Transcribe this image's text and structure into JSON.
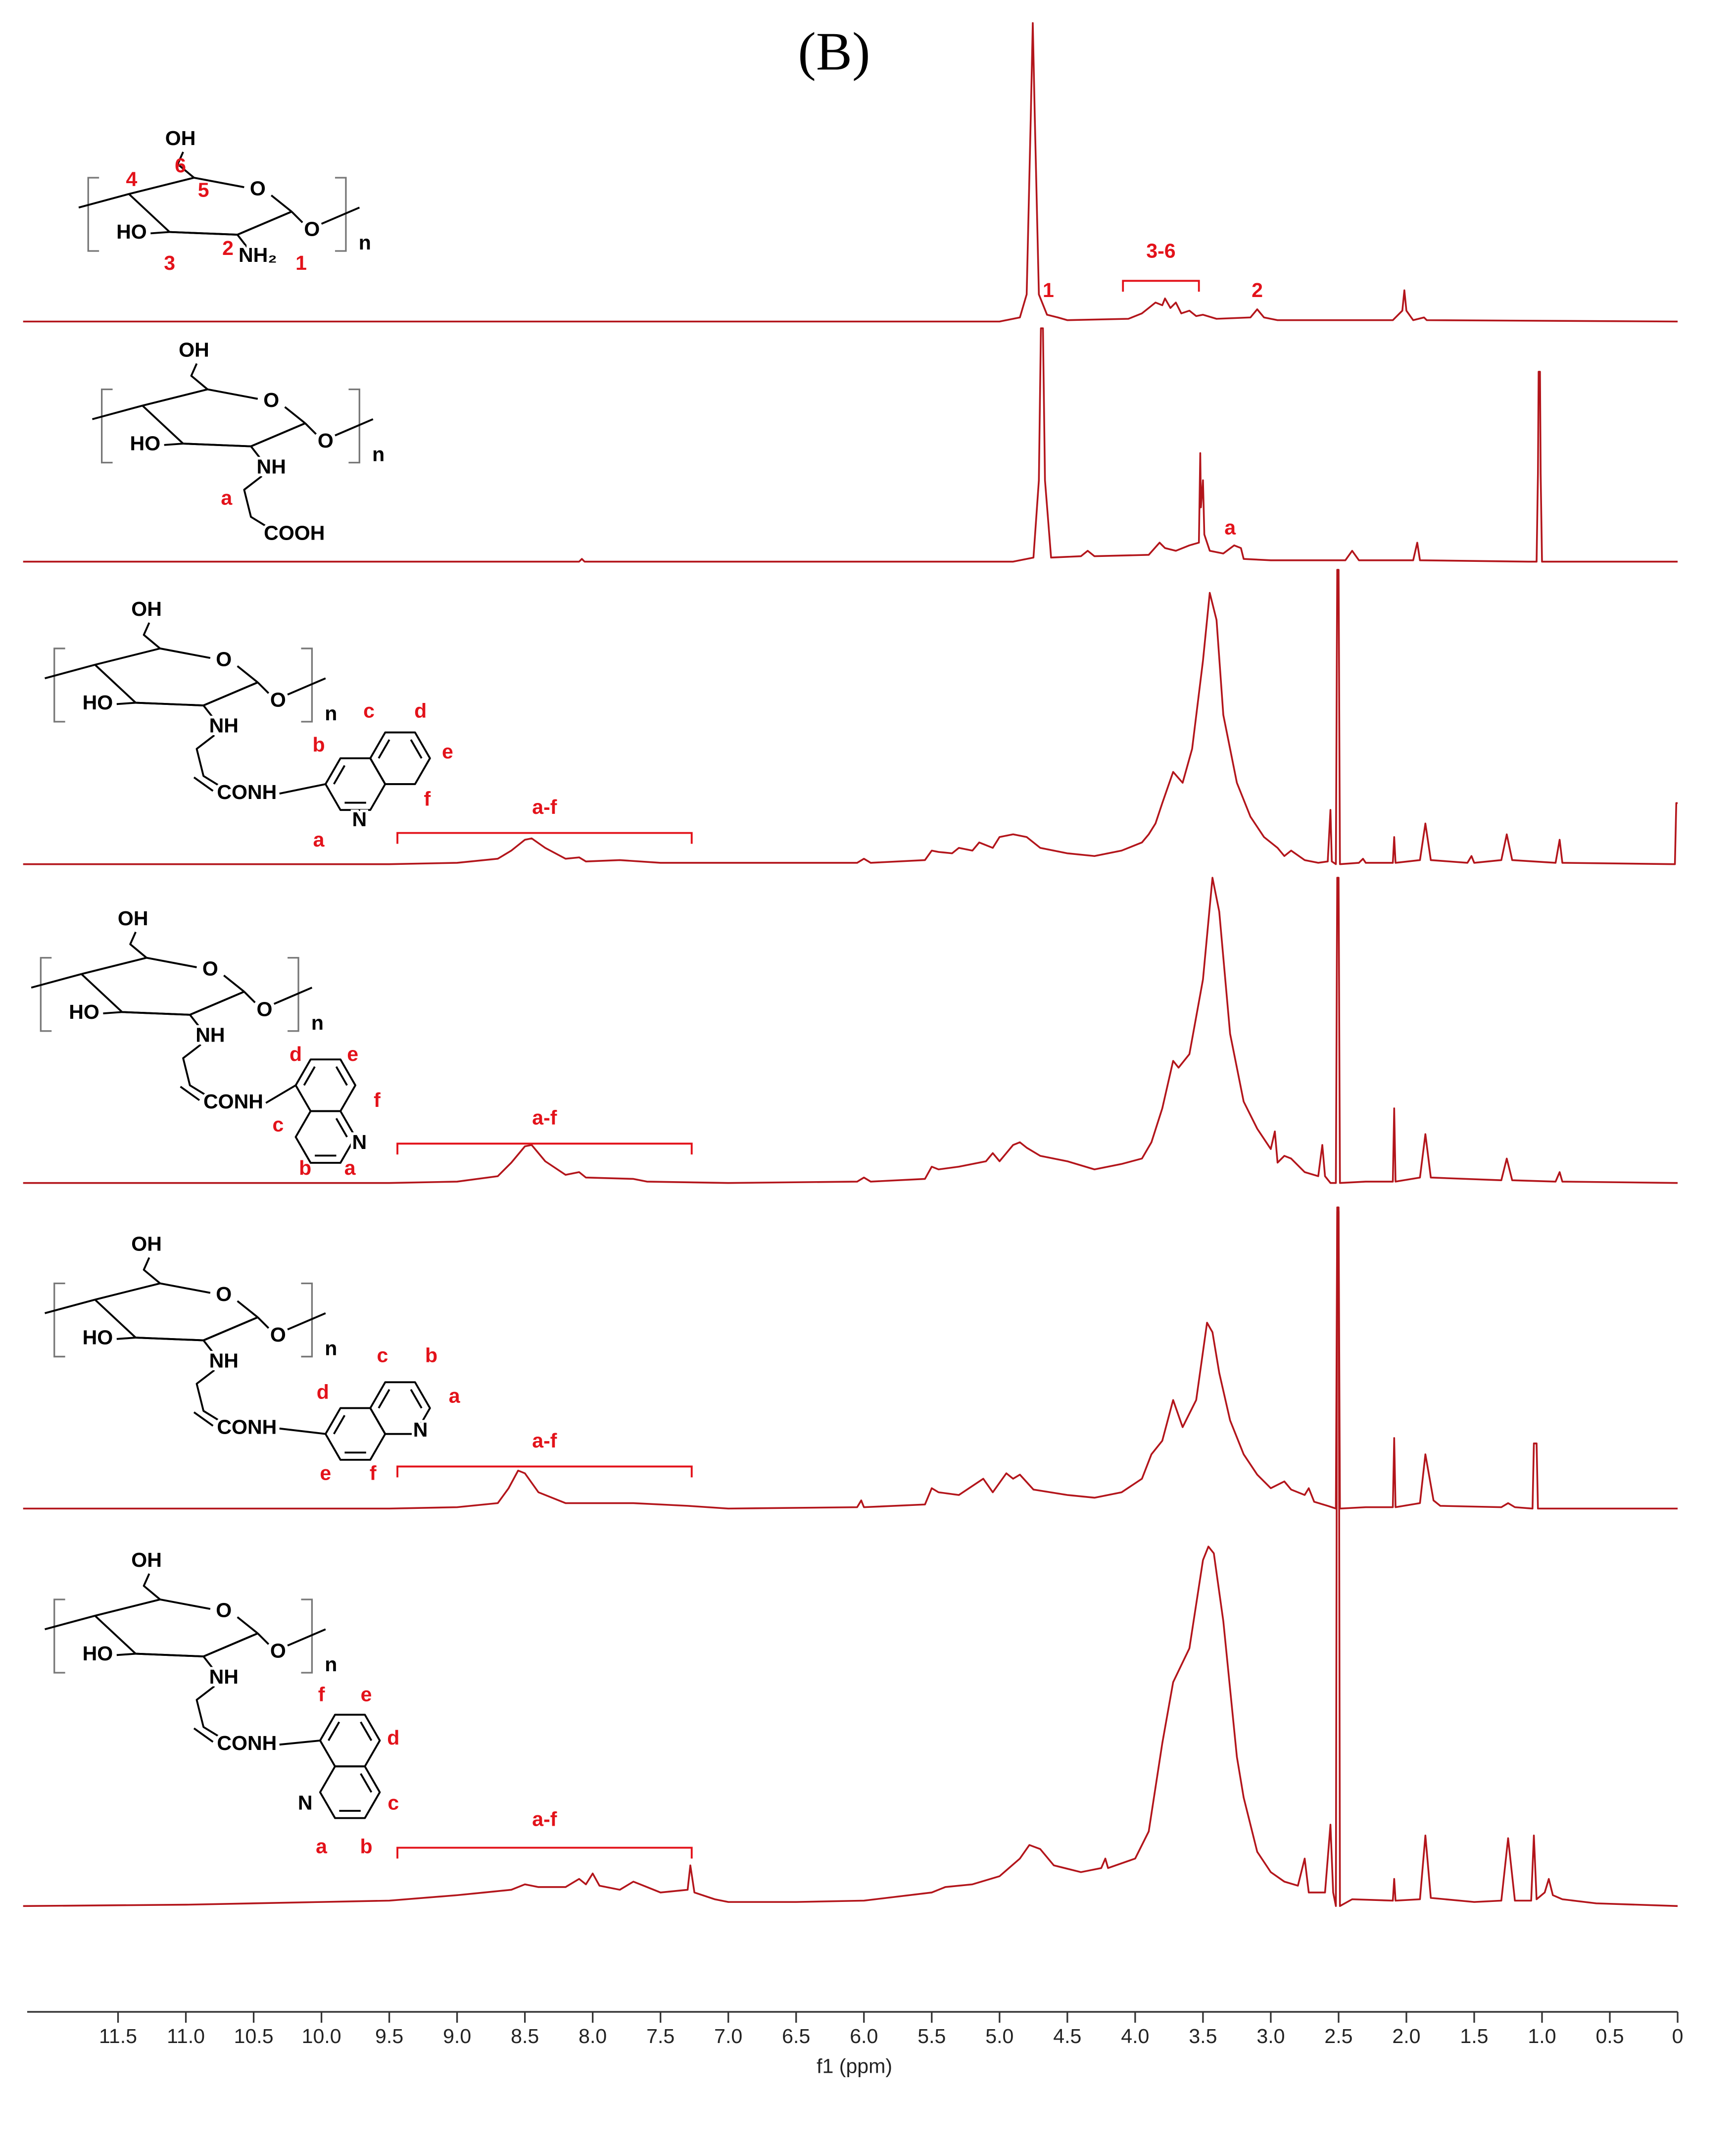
{
  "chart_data": {
    "type": "line",
    "title": "(B)",
    "x_label": "f1 (ppm)",
    "xlim": [
      12.17,
      0
    ],
    "xticks": [
      11.5,
      {
        "value": 11,
        "label": "11.0"
      },
      10.5,
      {
        "value": 10,
        "label": "10.0"
      },
      9.5,
      {
        "value": 9,
        "label": "9.0"
      },
      8.5,
      {
        "value": 8,
        "label": "8.0"
      },
      7.5,
      {
        "value": 7,
        "label": "7.0"
      },
      6.5,
      {
        "value": 6,
        "label": "6.0"
      },
      5.5,
      {
        "value": 5,
        "label": "5.0"
      },
      4.5,
      {
        "value": 4,
        "label": "4.0"
      },
      3.5,
      {
        "value": 3,
        "label": "3.0"
      },
      2.5,
      {
        "value": 2,
        "label": "2.0"
      },
      1.5,
      {
        "value": 1,
        "label": "1.0"
      },
      0.5,
      0
    ],
    "series": [
      {
        "color": "#b3151b",
        "x": [
          12.2,
          5.0,
          4.85,
          4.8,
          4.77,
          4.755,
          4.74,
          4.71,
          4.65,
          4.57,
          4.5,
          4.05,
          3.95,
          3.9,
          3.85,
          3.8,
          3.78,
          3.74,
          3.7,
          3.66,
          3.6,
          3.55,
          3.5,
          3.4,
          3.15,
          3.1,
          3.05,
          2.95,
          2.1,
          2.03,
          2.015,
          2.0,
          1.95,
          1.87,
          1.85,
          0
        ],
        "values": [
          0,
          0,
          3,
          20,
          150,
          220,
          150,
          20,
          5,
          3,
          1,
          2,
          6,
          10,
          14,
          12,
          17,
          10,
          14,
          6,
          8,
          4,
          5,
          2,
          3,
          9,
          3,
          1,
          1,
          8,
          23,
          8,
          1,
          3,
          1,
          0
        ],
        "annotations": [
          {
            "text": "1",
            "x": 4.64
          },
          {
            "text": "3-6",
            "range": [
              4.09,
              3.53
            ]
          },
          {
            "text": "2",
            "x": 3.1
          }
        ]
      },
      {
        "color": "#b3151b",
        "x": [
          12.2,
          8.1,
          8.08,
          8.06,
          4.9,
          4.75,
          4.71,
          4.695,
          4.68,
          4.665,
          4.62,
          4.4,
          4.35,
          4.3,
          3.9,
          3.82,
          3.78,
          3.7,
          3.6,
          3.53,
          3.52,
          3.515,
          3.5,
          3.49,
          3.45,
          3.35,
          3.27,
          3.22,
          3.2,
          3.0,
          2.45,
          2.4,
          2.35,
          1.95,
          1.92,
          1.9,
          1.1,
          1.04,
          1.03,
          1.025,
          1.015,
          1.01,
          1.0,
          0
        ],
        "values": [
          0,
          0,
          2,
          0,
          0,
          3,
          60,
          172,
          172,
          60,
          3,
          4,
          8,
          4,
          5,
          14,
          10,
          8,
          12,
          14,
          80,
          40,
          60,
          20,
          8,
          6,
          12,
          10,
          2,
          1,
          1,
          8,
          1,
          1,
          14,
          1,
          0,
          0,
          65,
          140,
          140,
          65,
          0,
          0
        ],
        "annotations": [
          {
            "text": "a",
            "x": 3.3
          }
        ]
      },
      {
        "color": "#b3151b",
        "x": [
          12.2,
          9.5,
          9.0,
          8.7,
          8.6,
          8.5,
          8.45,
          8.35,
          8.2,
          8.1,
          8.05,
          7.8,
          7.5,
          7.0,
          6.05,
          6.0,
          5.95,
          5.55,
          5.5,
          5.45,
          5.35,
          5.3,
          5.2,
          5.15,
          5.05,
          5.0,
          4.9,
          4.8,
          4.7,
          4.5,
          4.3,
          4.1,
          3.95,
          3.9,
          3.85,
          3.8,
          3.72,
          3.65,
          3.58,
          3.5,
          3.45,
          3.4,
          3.35,
          3.25,
          3.15,
          3.05,
          2.95,
          2.9,
          2.85,
          2.75,
          2.65,
          2.58,
          2.56,
          2.55,
          2.52,
          2.51,
          2.5,
          2.49,
          2.35,
          2.32,
          2.3,
          2.1,
          2.09,
          2.08,
          1.9,
          1.86,
          1.82,
          1.55,
          1.52,
          1.5,
          1.3,
          1.26,
          1.22,
          0.9,
          0.87,
          0.85,
          0.02,
          0.01,
          0
        ],
        "values": [
          0,
          0,
          1,
          4,
          10,
          18,
          19,
          12,
          4,
          5,
          2,
          3,
          1,
          1,
          1,
          4,
          1,
          3,
          10,
          9,
          8,
          12,
          10,
          16,
          12,
          20,
          22,
          20,
          12,
          8,
          6,
          10,
          16,
          22,
          30,
          45,
          68,
          60,
          85,
          150,
          200,
          180,
          110,
          60,
          35,
          20,
          12,
          6,
          10,
          3,
          1,
          2,
          40,
          2,
          0,
          217,
          217,
          0,
          1,
          4,
          1,
          1,
          20,
          1,
          3,
          30,
          3,
          1,
          6,
          1,
          3,
          22,
          3,
          1,
          18,
          1,
          0,
          45,
          45
        ],
        "annotations": [
          {
            "text": "a-f",
            "range": [
              9.44,
              7.27
            ]
          }
        ]
      },
      {
        "color": "#b3151b",
        "x": [
          12.2,
          9.5,
          9.0,
          8.7,
          8.6,
          8.5,
          8.45,
          8.35,
          8.2,
          8.1,
          8.05,
          7.7,
          7.6,
          7.0,
          6.05,
          6.0,
          5.95,
          5.55,
          5.5,
          5.45,
          5.3,
          5.1,
          5.05,
          5.0,
          4.9,
          4.85,
          4.8,
          4.7,
          4.5,
          4.3,
          4.1,
          3.95,
          3.88,
          3.8,
          3.72,
          3.68,
          3.6,
          3.5,
          3.43,
          3.38,
          3.3,
          3.2,
          3.1,
          3.0,
          2.97,
          2.95,
          2.9,
          2.85,
          2.75,
          2.65,
          2.62,
          2.6,
          2.56,
          2.52,
          2.51,
          2.5,
          2.49,
          2.3,
          2.1,
          2.09,
          2.08,
          1.9,
          1.86,
          1.82,
          1.3,
          1.26,
          1.22,
          0.9,
          0.87,
          0.85,
          0
        ],
        "values": [
          0,
          0,
          1,
          5,
          15,
          27,
          28,
          16,
          6,
          8,
          4,
          3,
          1,
          0,
          1,
          4,
          1,
          3,
          12,
          10,
          12,
          16,
          22,
          16,
          28,
          30,
          26,
          20,
          16,
          10,
          14,
          18,
          30,
          55,
          90,
          85,
          95,
          150,
          225,
          200,
          110,
          60,
          40,
          25,
          38,
          15,
          20,
          18,
          8,
          5,
          28,
          5,
          0,
          0,
          225,
          225,
          0,
          1,
          1,
          55,
          1,
          4,
          36,
          4,
          2,
          18,
          2,
          1,
          8,
          1,
          0
        ],
        "annotations": [
          {
            "text": "a-f",
            "range": [
              9.44,
              7.27
            ]
          }
        ]
      },
      {
        "color": "#b3151b",
        "x": [
          12.2,
          9.5,
          9.0,
          8.7,
          8.62,
          8.55,
          8.5,
          8.4,
          8.2,
          7.7,
          7.5,
          7.3,
          7.0,
          6.05,
          6.02,
          6.0,
          5.55,
          5.5,
          5.45,
          5.3,
          5.12,
          5.05,
          4.95,
          4.9,
          4.85,
          4.75,
          4.5,
          4.3,
          4.1,
          3.95,
          3.88,
          3.8,
          3.72,
          3.65,
          3.55,
          3.47,
          3.43,
          3.38,
          3.3,
          3.2,
          3.1,
          3.0,
          2.9,
          2.85,
          2.75,
          2.72,
          2.68,
          2.58,
          2.52,
          2.51,
          2.5,
          2.49,
          2.3,
          2.1,
          2.09,
          2.08,
          1.9,
          1.86,
          1.8,
          1.75,
          1.3,
          1.25,
          1.2,
          1.07,
          1.06,
          1.04,
          1.03,
          0
        ],
        "values": [
          0,
          0,
          1,
          4,
          15,
          28,
          26,
          12,
          4,
          4,
          3,
          2,
          0,
          1,
          6,
          1,
          3,
          15,
          12,
          10,
          22,
          12,
          26,
          22,
          25,
          14,
          10,
          8,
          12,
          22,
          40,
          50,
          80,
          60,
          80,
          137,
          130,
          100,
          65,
          40,
          25,
          15,
          20,
          14,
          10,
          15,
          5,
          2,
          0,
          219,
          219,
          0,
          1,
          1,
          52,
          1,
          4,
          40,
          6,
          2,
          1,
          4,
          1,
          0,
          48,
          48,
          0,
          0
        ],
        "annotations": [
          {
            "text": "a-f",
            "range": [
              9.44,
              7.27
            ]
          }
        ]
      },
      {
        "color": "#b3151b",
        "x": [
          12.2,
          11.0,
          10.0,
          9.5,
          9.0,
          8.8,
          8.6,
          8.5,
          8.4,
          8.2,
          8.1,
          8.05,
          8.0,
          7.95,
          7.8,
          7.7,
          7.6,
          7.5,
          7.3,
          7.28,
          7.25,
          7.1,
          7.0,
          6.5,
          6.0,
          5.5,
          5.4,
          5.2,
          5.0,
          4.85,
          4.78,
          4.7,
          4.6,
          4.4,
          4.25,
          4.22,
          4.2,
          4.0,
          3.9,
          3.8,
          3.72,
          3.6,
          3.5,
          3.46,
          3.42,
          3.35,
          3.25,
          3.2,
          3.15,
          3.1,
          3.0,
          2.9,
          2.8,
          2.75,
          2.72,
          2.6,
          2.56,
          2.54,
          2.52,
          2.51,
          2.5,
          2.49,
          2.4,
          2.1,
          2.09,
          2.08,
          1.9,
          1.86,
          1.82,
          1.5,
          1.3,
          1.25,
          1.2,
          1.08,
          1.06,
          1.04,
          0.98,
          0.95,
          0.92,
          0.85,
          0.6,
          0
        ],
        "values": [
          0,
          1,
          3,
          4,
          8,
          10,
          12,
          16,
          14,
          14,
          20,
          16,
          24,
          15,
          12,
          18,
          14,
          10,
          12,
          30,
          10,
          5,
          3,
          3,
          4,
          10,
          14,
          16,
          22,
          35,
          45,
          42,
          30,
          25,
          28,
          35,
          28,
          35,
          55,
          120,
          165,
          190,
          255,
          265,
          260,
          210,
          110,
          80,
          60,
          40,
          25,
          18,
          15,
          35,
          10,
          10,
          60,
          10,
          0,
          515,
          515,
          0,
          5,
          4,
          20,
          4,
          5,
          52,
          6,
          3,
          4,
          50,
          4,
          4,
          52,
          5,
          10,
          20,
          8,
          5,
          2,
          0
        ],
        "annotations": [
          {
            "text": "a-f",
            "range": [
              9.44,
              7.27
            ]
          }
        ]
      }
    ]
  },
  "structures": [
    {
      "atoms": [
        "OH",
        "O",
        "HO",
        "NH₂",
        "O",
        "n"
      ],
      "labels": [
        "6",
        "4",
        "5",
        "3",
        "2",
        "1"
      ]
    },
    {
      "atoms": [
        "OH",
        "O",
        "HO",
        "NH",
        "O",
        "n",
        "COOH"
      ],
      "labels": [
        "a"
      ]
    },
    {
      "atoms": [
        "OH",
        "O",
        "HO",
        "NH",
        "O",
        "n",
        "CONH",
        "N"
      ],
      "labels": [
        "a",
        "b",
        "c",
        "d",
        "e",
        "f"
      ]
    },
    {
      "atoms": [
        "OH",
        "O",
        "HO",
        "NH",
        "O",
        "n",
        "CONH",
        "N"
      ],
      "labels": [
        "a",
        "b",
        "c",
        "d",
        "e",
        "f"
      ]
    },
    {
      "atoms": [
        "OH",
        "O",
        "HO",
        "NH",
        "O",
        "n",
        "CONH",
        "N"
      ],
      "labels": [
        "a",
        "b",
        "c",
        "d",
        "e",
        "f"
      ]
    },
    {
      "atoms": [
        "OH",
        "O",
        "HO",
        "NH",
        "O",
        "n",
        "CONH",
        "N"
      ],
      "labels": [
        "a",
        "b",
        "c",
        "d",
        "e",
        "f"
      ]
    }
  ]
}
